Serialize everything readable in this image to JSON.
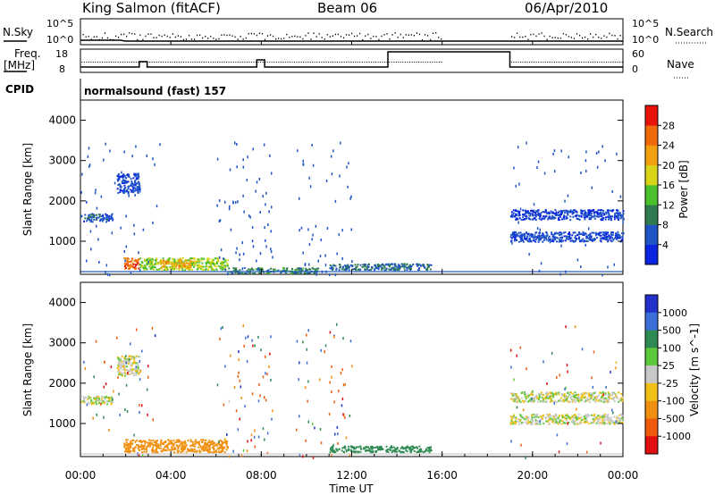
{
  "header": {
    "station": "King Salmon (fitACF)",
    "beam": "Beam 06",
    "date": "06/Apr/2010"
  },
  "top_panel": {
    "nsky_label": "N.Sky",
    "nsearch_label": "N.Search",
    "left_ticks": [
      "10^5",
      "10^0"
    ],
    "right_ticks": [
      "10^5",
      "10^0"
    ],
    "freq_label": "Freq.",
    "freq_unit": "[MHz]",
    "freq_ticks": [
      "18",
      "8"
    ],
    "nave_label": "Nave",
    "nave_ticks": [
      "60",
      "0"
    ],
    "cpid_label": "CPID",
    "cpid_text": "normalsound (fast) 157"
  },
  "chart_data": [
    {
      "type": "heatmap",
      "title": "",
      "xlabel": "",
      "ylabel": "Slant Range [km]",
      "xlim": [
        0,
        24
      ],
      "ylim": [
        180,
        4500
      ],
      "yticks": [
        "1000",
        "2000",
        "3000",
        "4000"
      ],
      "colorbar": {
        "label": "Power [dB]",
        "ticks": [
          "4",
          "8",
          "12",
          "16",
          "20",
          "24",
          "28"
        ],
        "colors": [
          "#0b24e0",
          "#1e54c4",
          "#2f7a4e",
          "#4bbf2c",
          "#d8d418",
          "#f2a010",
          "#f06a0c",
          "#e8140c"
        ]
      },
      "regions": [
        {
          "t0": 0.0,
          "t1": 1.4,
          "r0": 1500,
          "r1": 1700,
          "value": 6
        },
        {
          "t0": 1.6,
          "t1": 2.6,
          "r0": 2200,
          "r1": 2700,
          "value": 5
        },
        {
          "t0": 1.9,
          "t1": 2.6,
          "r0": 300,
          "r1": 600,
          "value": 26
        },
        {
          "t0": 2.6,
          "t1": 6.5,
          "r0": 300,
          "r1": 600,
          "value": 16
        },
        {
          "t0": 3.5,
          "t1": 5.0,
          "r0": 350,
          "r1": 560,
          "value": 22
        },
        {
          "t0": 6.5,
          "t1": 10.5,
          "r0": 220,
          "r1": 360,
          "value": 10
        },
        {
          "t0": 11.0,
          "t1": 15.5,
          "r0": 300,
          "r1": 460,
          "value": 8
        },
        {
          "t0": 19.0,
          "t1": 24.0,
          "r0": 1550,
          "r1": 1800,
          "value": 4
        },
        {
          "t0": 19.0,
          "t1": 24.0,
          "r0": 1000,
          "r1": 1250,
          "value": 5
        }
      ]
    },
    {
      "type": "heatmap",
      "title": "",
      "xlabel": "Time UT",
      "ylabel": "Slant Range [km]",
      "xlim": [
        0,
        24
      ],
      "ylim": [
        180,
        4500
      ],
      "xticks": [
        "00:00",
        "04:00",
        "08:00",
        "12:00",
        "16:00",
        "20:00",
        "00:00"
      ],
      "yticks": [
        "1000",
        "2000",
        "3000",
        "4000"
      ],
      "colorbar": {
        "label": "Velocity [m s^-1]",
        "ticks": [
          "1000",
          "500",
          "100",
          "25",
          "-25",
          "-100",
          "-500",
          "-1000"
        ],
        "colors": [
          "#2030c8",
          "#3a6ed8",
          "#2e8a52",
          "#5cc83a",
          "#c8c8c8",
          "#f0c018",
          "#f09010",
          "#f05a0c",
          "#e01010"
        ]
      },
      "regions": [
        {
          "t0": 0.0,
          "t1": 1.4,
          "r0": 1500,
          "r1": 1700,
          "value": 0
        },
        {
          "t0": 1.6,
          "t1": 2.6,
          "r0": 2200,
          "r1": 2700,
          "value": 0
        },
        {
          "t0": 1.9,
          "t1": 6.5,
          "r0": 300,
          "r1": 620,
          "value": -200
        },
        {
          "t0": 11.0,
          "t1": 15.5,
          "r0": 300,
          "r1": 460,
          "value": 200
        },
        {
          "t0": 19.0,
          "t1": 24.0,
          "r0": 1550,
          "r1": 1800,
          "value": 0
        },
        {
          "t0": 19.0,
          "t1": 24.0,
          "r0": 1000,
          "r1": 1250,
          "value": 0
        }
      ]
    }
  ]
}
